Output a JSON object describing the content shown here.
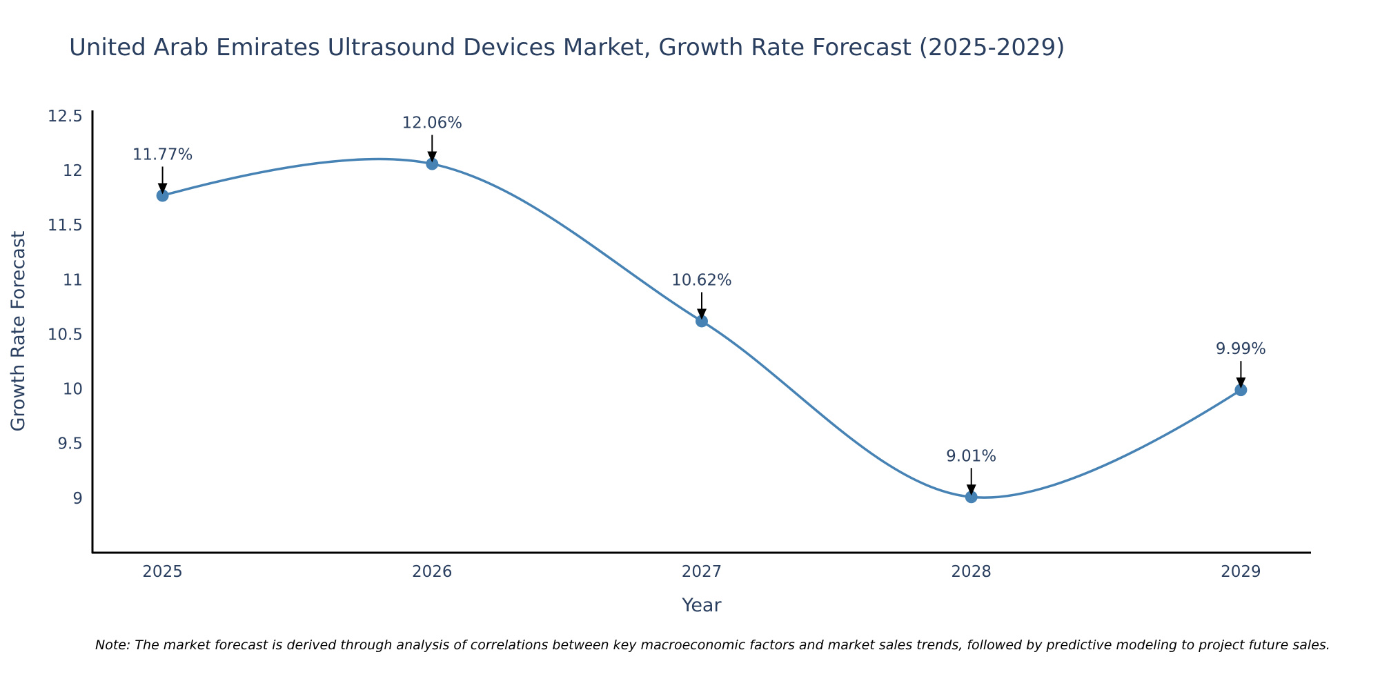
{
  "chart_data": {
    "type": "line",
    "title": "United Arab Emirates Ultrasound Devices Market, Growth Rate Forecast (2025-2029)",
    "xlabel": "Year",
    "ylabel": "Growth Rate Forecast",
    "x": [
      2025,
      2026,
      2027,
      2028,
      2029
    ],
    "categories": [
      "2025",
      "2026",
      "2027",
      "2028",
      "2029"
    ],
    "series": [
      {
        "name": "Growth Rate Forecast",
        "values": [
          11.77,
          12.06,
          10.62,
          9.01,
          9.99
        ],
        "color": "#4682b4",
        "line_shape": "spline",
        "markers": true
      }
    ],
    "annotations": [
      "11.77%",
      "12.06%",
      "10.62%",
      "9.01%",
      "9.99%"
    ],
    "xlim": [
      2024.74,
      2029.26
    ],
    "ylim": [
      8.5,
      12.55
    ],
    "yticks": [
      9,
      9.5,
      10,
      10.5,
      11,
      11.5,
      12,
      12.5
    ],
    "ytick_labels": [
      "9",
      "9.5",
      "10",
      "10.5",
      "11",
      "11.5",
      "12",
      "12.5"
    ],
    "grid": false,
    "legend": "none",
    "note": "Note: The market forecast is derived through analysis of correlations between key macroeconomic factors and market sales trends, followed by predictive modeling to project future sales."
  }
}
